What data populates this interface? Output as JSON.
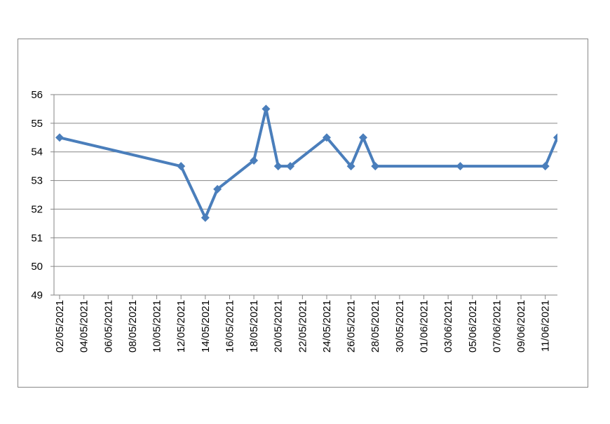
{
  "chart_data": {
    "type": "line",
    "x": [
      "02/05/2021",
      "12/05/2021",
      "14/05/2021",
      "15/05/2021",
      "18/05/2021",
      "19/05/2021",
      "20/05/2021",
      "21/05/2021",
      "24/05/2021",
      "26/05/2021",
      "27/05/2021",
      "28/05/2021",
      "04/06/2021",
      "11/06/2021",
      "12/06/2021"
    ],
    "series": [
      {
        "color": "#4a7ebb",
        "values": [
          54.5,
          53.5,
          51.7,
          52.7,
          53.7,
          55.5,
          53.5,
          53.5,
          54.5,
          53.5,
          54.5,
          53.5,
          53.5,
          53.5,
          54.5
        ]
      }
    ],
    "xlim": [
      "02/05/2021",
      "12/06/2021"
    ],
    "xticks": [
      "02/05/2021",
      "04/05/2021",
      "06/05/2021",
      "08/05/2021",
      "10/05/2021",
      "12/05/2021",
      "14/05/2021",
      "16/05/2021",
      "18/05/2021",
      "20/05/2021",
      "22/05/2021",
      "24/05/2021",
      "26/05/2021",
      "28/05/2021",
      "30/05/2021",
      "01/06/2021",
      "03/06/2021",
      "05/06/2021",
      "07/06/2021",
      "09/06/2021",
      "11/06/2021"
    ],
    "ylim": [
      49,
      56
    ],
    "yticks": [
      49,
      50,
      51,
      52,
      53,
      54,
      55,
      56
    ],
    "grid": true
  }
}
